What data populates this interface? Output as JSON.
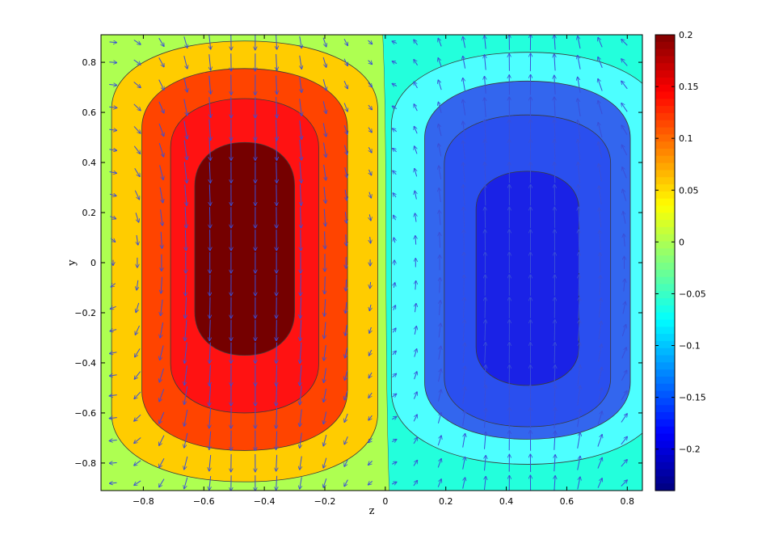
{
  "chart_data": {
    "type": "contour",
    "title": "",
    "xlabel": "z",
    "ylabel": "y",
    "xlim": [
      -0.94,
      0.85
    ],
    "ylim": [
      -0.91,
      0.91
    ],
    "x_ticks": [
      -0.8,
      -0.6,
      -0.4,
      -0.2,
      0,
      0.2,
      0.4,
      0.6,
      0.8
    ],
    "x_tick_labels": [
      "−0.8",
      "−0.6",
      "−0.4",
      "−0.2",
      "0",
      "0.2",
      "0.4",
      "0.6",
      "0.8"
    ],
    "y_ticks": [
      0.8,
      0.6,
      0.4,
      0.2,
      0,
      -0.2,
      -0.4,
      -0.6,
      -0.8
    ],
    "y_tick_labels": [
      "0.8",
      "0.6",
      "0.4",
      "0.2",
      "0",
      "−0.2",
      "−0.4",
      "−0.6",
      "−0.8"
    ],
    "colorbar": {
      "colormap": "jet",
      "limits": [
        -0.24,
        0.2
      ],
      "ticks": [
        0.2,
        0.15,
        0.1,
        0.05,
        0,
        -0.05,
        -0.1,
        -0.15,
        -0.2
      ],
      "tick_labels": [
        "0.2",
        "0.15",
        "0.1",
        "0.05",
        "0",
        "−0.05",
        "−0.1",
        "−0.15",
        "−0.2"
      ]
    },
    "background_levels": {
      "left": 0.0,
      "right": -0.06
    },
    "cells": [
      {
        "center": [
          -0.465,
          0.0
        ],
        "levels": [
          {
            "value": 0.085,
            "color": "#ffcc00",
            "half_width": 0.44,
            "y_range": [
              -0.875,
              0.885
            ],
            "corner": 0.25
          },
          {
            "value": 0.13,
            "color": "#ff4400",
            "half_width": 0.34,
            "y_range": [
              -0.75,
              0.775
            ],
            "corner": 0.22
          },
          {
            "value": 0.16,
            "color": "#ff1212",
            "half_width": 0.245,
            "y_range": [
              -0.6,
              0.655
            ],
            "corner": 0.18
          },
          {
            "value": 0.2,
            "color": "#750000",
            "half_width": 0.165,
            "y_range": [
              -0.37,
              0.48
            ],
            "corner": 0.16
          }
        ]
      },
      {
        "center": [
          0.47,
          0.0
        ],
        "levels": [
          {
            "value": -0.1,
            "color": "#4dffff",
            "half_width": 0.45,
            "y_range": [
              -0.805,
              0.84
            ],
            "corner": 0.27
          },
          {
            "value": -0.18,
            "color": "#3366ee",
            "half_width": 0.34,
            "y_range": [
              -0.705,
              0.725
            ],
            "corner": 0.21
          },
          {
            "value": -0.2,
            "color": "#2a4fef",
            "half_width": 0.275,
            "y_range": [
              -0.655,
              0.59
            ],
            "corner": 0.18
          },
          {
            "value": -0.23,
            "color": "#1a22e6",
            "half_width": 0.17,
            "y_range": [
              -0.49,
              0.365
            ],
            "corner": 0.14
          }
        ]
      }
    ],
    "vector_field": {
      "color": "#3a4fd6",
      "z_grid": [
        -0.9,
        -0.82,
        -0.74,
        -0.66,
        -0.58,
        -0.51,
        -0.43,
        -0.36,
        -0.28,
        -0.2,
        -0.13,
        -0.05,
        0.03,
        0.1,
        0.18,
        0.26,
        0.33,
        0.41,
        0.48,
        0.56,
        0.64,
        0.71,
        0.79
      ],
      "y_grid": [
        0.88,
        0.8,
        0.71,
        0.62,
        0.53,
        0.45,
        0.36,
        0.27,
        0.18,
        0.09,
        0.0,
        -0.09,
        -0.18,
        -0.27,
        -0.36,
        -0.45,
        -0.53,
        -0.62,
        -0.71,
        -0.8,
        -0.88
      ],
      "circulation": "downward through left cell, upward through right cell"
    },
    "grid": false
  }
}
